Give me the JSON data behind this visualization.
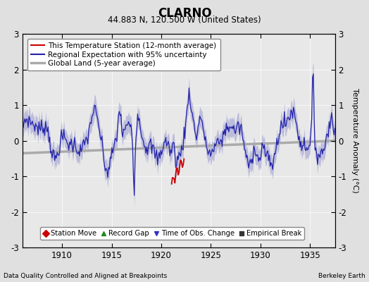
{
  "title": "CLARNO",
  "subtitle": "44.883 N, 120.500 W (United States)",
  "xlabel_left": "Data Quality Controlled and Aligned at Breakpoints",
  "xlabel_right": "Berkeley Earth",
  "ylabel": "Temperature Anomaly (°C)",
  "year_start": 1906,
  "year_end": 1937.5,
  "xticks": [
    1910,
    1915,
    1920,
    1925,
    1930,
    1935
  ],
  "ylim": [
    -3,
    3
  ],
  "yticks": [
    -3,
    -2,
    -1,
    0,
    1,
    2,
    3
  ],
  "bg_color": "#e0e0e0",
  "plot_bg_color": "#e8e8e8",
  "legend_items": [
    {
      "label": "This Temperature Station (12-month average)",
      "color": "#cc0000",
      "lw": 1.5
    },
    {
      "label": "Regional Expectation with 95% uncertainty",
      "color": "#3333bb",
      "lw": 1.5
    },
    {
      "label": "Global Land (5-year average)",
      "color": "#aaaaaa",
      "lw": 2.5
    }
  ],
  "marker_legend": [
    {
      "label": "Station Move",
      "color": "#cc0000",
      "marker": "D"
    },
    {
      "label": "Record Gap",
      "color": "#228822",
      "marker": "^"
    },
    {
      "label": "Time of Obs. Change",
      "color": "#3333bb",
      "marker": "v"
    },
    {
      "label": "Empirical Break",
      "color": "#333333",
      "marker": "s"
    }
  ]
}
